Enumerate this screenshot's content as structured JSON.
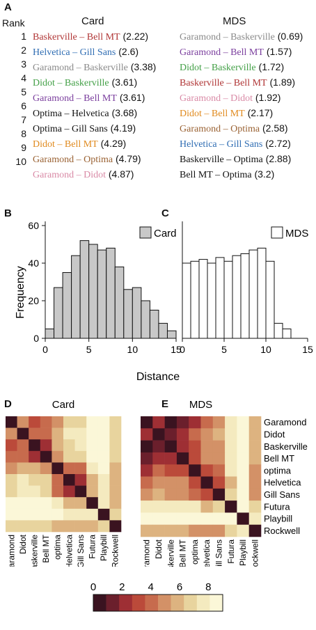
{
  "panels": {
    "a": "A",
    "b": "B",
    "c": "C",
    "d": "D",
    "e": "E"
  },
  "table": {
    "rank_header": "Rank",
    "card_header": "Card",
    "mds_header": "MDS",
    "ranks": [
      "1",
      "2",
      "3",
      "4",
      "5",
      "6",
      "7",
      "8",
      "9",
      "10"
    ],
    "card_rows": [
      {
        "pair": "Baskerville – Bell MT",
        "value": "(2.22)",
        "color": "#b03535"
      },
      {
        "pair": "Helvetica – Gill Sans",
        "value": "(2.6)",
        "color": "#2f6db3"
      },
      {
        "pair": "Garamond – Baskerville",
        "value": "(3.38)",
        "color": "#8a8a8a"
      },
      {
        "pair": "Didot – Baskerville",
        "value": "(3.61)",
        "color": "#43a047"
      },
      {
        "pair": "Garamond – Bell MT",
        "value": "(3.61)",
        "color": "#7b3f9e"
      },
      {
        "pair": "Optima – Helvetica",
        "value": "(3.68)",
        "color": "#111111"
      },
      {
        "pair": "Optima – Gill Sans",
        "value": "(4.19)",
        "color": "#111111"
      },
      {
        "pair": "Didot – Bell MT",
        "value": "(4.29)",
        "color": "#e08a1e"
      },
      {
        "pair": "Garamond – Optima",
        "value": "(4.79)",
        "color": "#9a6233"
      },
      {
        "pair": "Garamond – Didot",
        "value": "(4.87)",
        "color": "#d98aa6"
      }
    ],
    "mds_rows": [
      {
        "pair": "Garamond – Baskerville",
        "value": "(0.69)",
        "color": "#8a8a8a"
      },
      {
        "pair": "Garamond – Bell MT",
        "value": "(1.57)",
        "color": "#7b3f9e"
      },
      {
        "pair": "Didot – Baskerville",
        "value": "(1.72)",
        "color": "#43a047"
      },
      {
        "pair": "Baskerville – Bell MT",
        "value": "(1.89)",
        "color": "#b03535"
      },
      {
        "pair": "Garamond – Didot",
        "value": "(1.92)",
        "color": "#d98aa6"
      },
      {
        "pair": "Didot – Bell MT",
        "value": "(2.17)",
        "color": "#e08a1e"
      },
      {
        "pair": "Garamond – Optima",
        "value": "(2.58)",
        "color": "#9a6233"
      },
      {
        "pair": "Helvetica – Gill Sans",
        "value": "(2.72)",
        "color": "#2f6db3"
      },
      {
        "pair": "Baskerville – Optima",
        "value": "(2.88)",
        "color": "#111111"
      },
      {
        "pair": "Bell MT – Optima",
        "value": "(3.2)",
        "color": "#111111"
      }
    ]
  },
  "chart_data": [
    {
      "type": "bar",
      "panel": "B",
      "legend": "Card",
      "fill": "#c8c8c8",
      "ylabel": "Frequency",
      "xlabel": "Distance",
      "xlim": [
        0,
        15
      ],
      "ylim": [
        0,
        60
      ],
      "xticks": [
        "0",
        "5",
        "10",
        "15"
      ],
      "yticks": [
        "0",
        "20",
        "40",
        "60"
      ],
      "bin_width": 1,
      "bin_starts": [
        0,
        1,
        2,
        3,
        4,
        5,
        6,
        7,
        8,
        9,
        10,
        11,
        12,
        13,
        14
      ],
      "values": [
        5,
        27,
        35,
        44,
        52,
        50,
        47,
        48,
        38,
        26,
        27,
        20,
        15,
        8,
        4
      ]
    },
    {
      "type": "bar",
      "panel": "C",
      "legend": "MDS",
      "fill": "#ffffff",
      "xlim": [
        0,
        15
      ],
      "ylim": [
        0,
        60
      ],
      "xticks": [
        "0",
        "5",
        "10",
        "15"
      ],
      "bin_width": 1,
      "bin_starts": [
        0,
        1,
        2,
        3,
        4,
        5,
        6,
        7,
        8,
        9,
        10,
        11,
        12
      ],
      "values": [
        40,
        41,
        42,
        40,
        43,
        41,
        44,
        45,
        47,
        48,
        41,
        8,
        5
      ]
    },
    {
      "type": "heatmap",
      "panel": "D",
      "title": "Card",
      "labels": [
        "Garamond",
        "Didot",
        "Baskerville",
        "Bell MT",
        "optima",
        "Helvetica",
        "Gill Sans",
        "Futura",
        "Playbill",
        "Rockwell"
      ],
      "matrix": [
        [
          0,
          4.9,
          3.4,
          3.6,
          4.8,
          6.8,
          7.1,
          8.3,
          8.5,
          6.5
        ],
        [
          4.9,
          0,
          3.6,
          4.3,
          6.2,
          7.2,
          7.4,
          8.5,
          8.6,
          6.8
        ],
        [
          3.4,
          3.6,
          0,
          2.2,
          5.6,
          7.0,
          7.2,
          8.5,
          8.6,
          6.5
        ],
        [
          3.6,
          4.3,
          2.2,
          0,
          5.2,
          7.0,
          7.1,
          8.6,
          8.7,
          6.7
        ],
        [
          4.8,
          6.2,
          5.6,
          5.2,
          0,
          3.7,
          4.2,
          7.3,
          8.4,
          6.0
        ],
        [
          6.8,
          7.2,
          7.0,
          7.0,
          3.7,
          0,
          2.6,
          5.4,
          7.8,
          5.8
        ],
        [
          7.1,
          7.4,
          7.2,
          7.1,
          4.2,
          2.6,
          0,
          5.8,
          8.0,
          6.1
        ],
        [
          8.3,
          8.5,
          8.5,
          8.6,
          7.3,
          5.4,
          5.8,
          0,
          7.5,
          6.2
        ],
        [
          8.5,
          8.6,
          8.6,
          8.7,
          8.4,
          7.8,
          8.0,
          7.5,
          0,
          6.6
        ],
        [
          6.5,
          6.8,
          6.5,
          6.7,
          6.0,
          5.8,
          6.1,
          6.2,
          6.6,
          0
        ]
      ]
    },
    {
      "type": "heatmap",
      "panel": "E",
      "title": "MDS",
      "labels": [
        "Garamond",
        "Didot",
        "Baskerville",
        "Bell MT",
        "optima",
        "Helvetica",
        "Gill Sans",
        "Futura",
        "Playbill",
        "Rockwell"
      ],
      "matrix": [
        [
          0,
          1.9,
          0.7,
          1.6,
          2.6,
          4.2,
          4.9,
          7.6,
          8.6,
          5.4
        ],
        [
          1.9,
          0,
          1.7,
          2.2,
          3.7,
          4.8,
          5.5,
          8.0,
          8.7,
          5.8
        ],
        [
          0.7,
          1.7,
          0,
          1.9,
          2.9,
          4.5,
          5.1,
          7.8,
          8.6,
          5.4
        ],
        [
          1.6,
          2.2,
          1.9,
          0,
          3.2,
          4.5,
          5.0,
          7.8,
          8.6,
          5.6
        ],
        [
          2.6,
          3.7,
          2.9,
          3.2,
          0,
          3.4,
          4.0,
          7.3,
          8.4,
          5.3
        ],
        [
          4.2,
          4.8,
          4.5,
          4.5,
          3.4,
          0,
          2.7,
          6.1,
          8.1,
          4.6
        ],
        [
          4.9,
          5.5,
          5.1,
          5.0,
          4.0,
          2.7,
          0,
          6.5,
          8.3,
          4.9
        ],
        [
          7.6,
          8.0,
          7.8,
          7.8,
          7.3,
          6.1,
          6.5,
          0,
          8.5,
          6.8
        ],
        [
          8.6,
          8.7,
          8.6,
          8.6,
          8.4,
          8.1,
          8.3,
          8.5,
          0,
          7.6
        ],
        [
          5.4,
          5.8,
          5.4,
          5.6,
          5.3,
          4.6,
          4.9,
          6.8,
          7.6,
          0
        ]
      ]
    },
    {
      "type": "colorbar",
      "ticks": [
        "0",
        "2",
        "4",
        "6",
        "8"
      ],
      "range": [
        0,
        9
      ],
      "colors": [
        "#3a1320",
        "#6b1f2c",
        "#9e2f34",
        "#bb4a3a",
        "#c76b4d",
        "#d39167",
        "#ddb380",
        "#e8d49e",
        "#f4eabf",
        "#fbf7d8"
      ]
    }
  ]
}
